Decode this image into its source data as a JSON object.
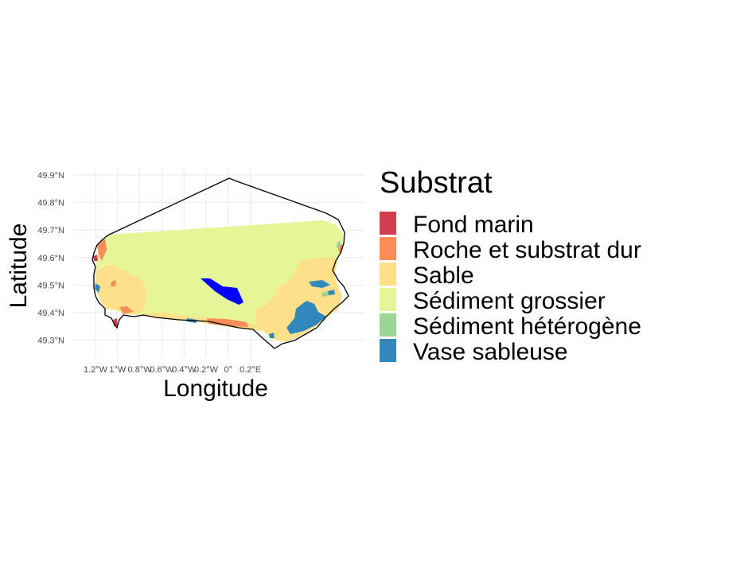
{
  "map": {
    "xlabel": "Longitude",
    "ylabel": "Latitude",
    "x_ticks": [
      "1.2°W",
      "1°W",
      "0.8°W",
      "0.6°W",
      "0.4°W",
      "0.2°W",
      "0°",
      "0.2°E"
    ],
    "x_tick_values": [
      -1.2,
      -1.0,
      -0.8,
      -0.6,
      -0.4,
      -0.2,
      0.0,
      0.2
    ],
    "y_ticks": [
      "49.9°N",
      "49.8°N",
      "49.7°N",
      "49.6°N",
      "49.5°N",
      "49.4°N",
      "49.3°N"
    ],
    "y_tick_values": [
      49.9,
      49.8,
      49.7,
      49.6,
      49.5,
      49.4,
      49.3
    ],
    "xlim": [
      -1.35,
      0.25
    ],
    "ylim": [
      49.22,
      49.92
    ],
    "grid": true
  },
  "legend": {
    "title": "Substrat",
    "placement": "right",
    "items": [
      {
        "label": "Fond marin",
        "color": "#d53e4f"
      },
      {
        "label": "Roche et substrat dur",
        "color": "#fc8d59"
      },
      {
        "label": "Sable",
        "color": "#fee08b"
      },
      {
        "label": "Sédiment grossier",
        "color": "#e6f598"
      },
      {
        "label": "Sédiment hétérogène",
        "color": "#99d594"
      },
      {
        "label": "Vase sableuse",
        "color": "#3288bd"
      }
    ]
  },
  "colors": {
    "highlight_zone": "#0000ff",
    "outline": "#000000"
  }
}
